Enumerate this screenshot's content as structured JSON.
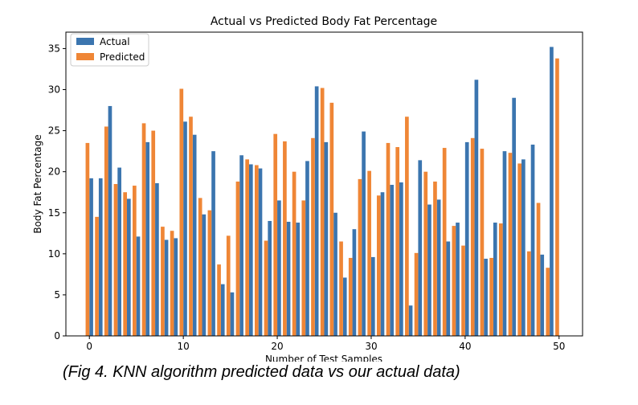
{
  "chart_data": {
    "type": "bar",
    "title": "Actual vs Predicted Body Fat Percentage",
    "xlabel": "Number of Test Samples",
    "ylabel": "Body Fat Percentage",
    "xlim": [
      -2.5,
      52.5
    ],
    "ylim": [
      0,
      37
    ],
    "x_ticks": [
      0,
      10,
      20,
      30,
      40,
      50
    ],
    "y_ticks": [
      0,
      5,
      10,
      15,
      20,
      25,
      30,
      35
    ],
    "legend": "top-left",
    "grid": false,
    "x": [
      0,
      1,
      2,
      3,
      4,
      5,
      6,
      7,
      8,
      9,
      10,
      11,
      12,
      13,
      14,
      15,
      16,
      17,
      18,
      19,
      20,
      21,
      22,
      23,
      24,
      25,
      26,
      27,
      28,
      29,
      30,
      31,
      32,
      33,
      34,
      35,
      36,
      37,
      38,
      39,
      40,
      41,
      42,
      43,
      44,
      45,
      46,
      47,
      48,
      49,
      50
    ],
    "series": [
      {
        "name": "Actual",
        "color": "#3b75af",
        "values": [
          19.2,
          19.2,
          28.0,
          20.5,
          16.7,
          12.1,
          23.6,
          18.6,
          11.7,
          11.9,
          26.1,
          24.5,
          14.8,
          22.5,
          6.3,
          5.3,
          22.0,
          20.9,
          20.4,
          14.0,
          16.5,
          13.9,
          13.8,
          21.3,
          30.4,
          23.6,
          15.0,
          7.1,
          13.0,
          24.9,
          9.6,
          17.5,
          18.4,
          18.7,
          3.7,
          21.4,
          16.0,
          16.6,
          11.5,
          13.8,
          23.6,
          31.2,
          9.4,
          13.8,
          22.5,
          29.0,
          21.5,
          23.3,
          9.9,
          35.2,
          0
        ]
      },
      {
        "name": "Predicted",
        "color": "#ef8636",
        "values": [
          23.5,
          14.5,
          25.5,
          18.5,
          17.5,
          18.3,
          25.9,
          25.0,
          13.3,
          12.8,
          30.1,
          26.7,
          16.8,
          15.3,
          8.7,
          12.2,
          18.8,
          21.5,
          20.8,
          11.6,
          24.6,
          23.7,
          20.0,
          16.5,
          24.1,
          30.2,
          28.4,
          11.5,
          9.5,
          19.1,
          20.1,
          17.1,
          23.5,
          23.0,
          26.7,
          10.1,
          20.0,
          18.8,
          22.9,
          13.4,
          11.0,
          24.1,
          22.8,
          9.5,
          13.7,
          22.3,
          21.0,
          10.3,
          16.2,
          8.3,
          33.8
        ]
      }
    ]
  },
  "caption": "(Fig 4. KNN algorithm predicted data vs our actual data)"
}
